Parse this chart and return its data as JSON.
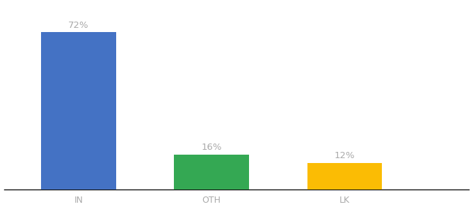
{
  "categories": [
    "IN",
    "OTH",
    "LK"
  ],
  "values": [
    72,
    16,
    12
  ],
  "labels": [
    "72%",
    "16%",
    "12%"
  ],
  "bar_colors": [
    "#4472C4",
    "#34A853",
    "#FBBC04"
  ],
  "background_color": "#ffffff",
  "text_color": "#aaaaaa",
  "label_fontsize": 9.5,
  "tick_fontsize": 9,
  "ylim": [
    0,
    85
  ],
  "bar_width": 0.18,
  "x_positions": [
    0.18,
    0.5,
    0.82
  ],
  "xlim": [
    0.0,
    1.12
  ]
}
